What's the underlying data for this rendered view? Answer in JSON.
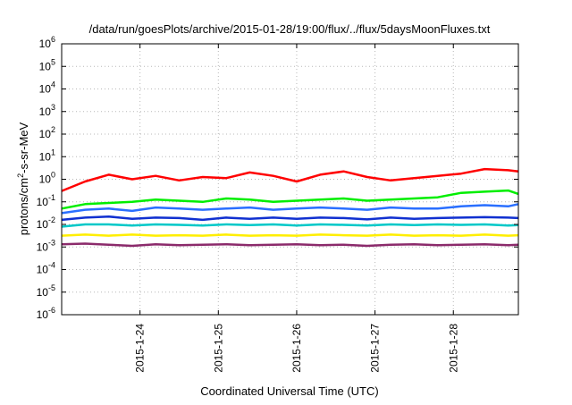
{
  "chart_data": {
    "type": "line",
    "title": "/data/run/goesPlots/archive/2015-01-28/19:00/flux/../flux/5daysMoonFluxes.txt",
    "xlabel": "Coordinated Universal Time (UTC)",
    "ylabel": {
      "base": "protons/cm",
      "sup": "2",
      "rest": "-s-sr-MeV"
    },
    "x_range_days": [
      0,
      5.83
    ],
    "y_scale": "log",
    "ylim": [
      1e-06,
      1000000.0
    ],
    "grid": true,
    "x_ticks": [
      {
        "label": "2015-1-24",
        "day": 1
      },
      {
        "label": "2015-1-25",
        "day": 2
      },
      {
        "label": "2015-1-26",
        "day": 3
      },
      {
        "label": "2015-1-27",
        "day": 4
      },
      {
        "label": "2015-1-28",
        "day": 5
      }
    ],
    "y_ticks": [
      {
        "base": "10",
        "exp": "-6",
        "value": -6
      },
      {
        "base": "10",
        "exp": "-5",
        "value": -5
      },
      {
        "base": "10",
        "exp": "-4",
        "value": -4
      },
      {
        "base": "10",
        "exp": "-3",
        "value": -3
      },
      {
        "base": "10",
        "exp": "-2",
        "value": -2
      },
      {
        "base": "10",
        "exp": "-1",
        "value": -1
      },
      {
        "base": "10",
        "exp": "0",
        "value": 0
      },
      {
        "base": "10",
        "exp": "1",
        "value": 1
      },
      {
        "base": "10",
        "exp": "2",
        "value": 2
      },
      {
        "base": "10",
        "exp": "3",
        "value": 3
      },
      {
        "base": "10",
        "exp": "4",
        "value": 4
      },
      {
        "base": "10",
        "exp": "5",
        "value": 5
      },
      {
        "base": "10",
        "exp": "6",
        "value": 6
      }
    ],
    "series": [
      {
        "color": "#ff0000",
        "x": [
          0,
          0.3,
          0.6,
          0.9,
          1.2,
          1.5,
          1.8,
          2.1,
          2.4,
          2.7,
          3.0,
          3.3,
          3.6,
          3.9,
          4.2,
          4.5,
          4.8,
          5.1,
          5.4,
          5.7,
          5.83
        ],
        "log10_y": [
          -0.52,
          -0.1,
          0.2,
          0.0,
          0.15,
          -0.05,
          0.1,
          0.05,
          0.3,
          0.15,
          -0.1,
          0.2,
          0.35,
          0.1,
          -0.05,
          0.05,
          0.15,
          0.25,
          0.45,
          0.4,
          0.35
        ]
      },
      {
        "color": "#00ee00",
        "x": [
          0,
          0.3,
          0.6,
          0.9,
          1.2,
          1.5,
          1.8,
          2.1,
          2.4,
          2.7,
          3.0,
          3.3,
          3.6,
          3.9,
          4.2,
          4.5,
          4.8,
          5.1,
          5.4,
          5.7,
          5.83
        ],
        "log10_y": [
          -1.3,
          -1.1,
          -1.05,
          -1.0,
          -0.9,
          -0.95,
          -1.0,
          -0.85,
          -0.9,
          -1.0,
          -0.95,
          -0.9,
          -0.85,
          -0.95,
          -0.9,
          -0.85,
          -0.8,
          -0.6,
          -0.55,
          -0.5,
          -0.65
        ]
      },
      {
        "color": "#2a6fff",
        "x": [
          0,
          0.3,
          0.6,
          0.9,
          1.2,
          1.5,
          1.8,
          2.1,
          2.4,
          2.7,
          3.0,
          3.3,
          3.6,
          3.9,
          4.2,
          4.5,
          4.8,
          5.1,
          5.4,
          5.7,
          5.83
        ],
        "log10_y": [
          -1.5,
          -1.35,
          -1.3,
          -1.4,
          -1.25,
          -1.3,
          -1.35,
          -1.3,
          -1.25,
          -1.35,
          -1.3,
          -1.25,
          -1.3,
          -1.35,
          -1.25,
          -1.3,
          -1.3,
          -1.2,
          -1.15,
          -1.2,
          -1.1
        ]
      },
      {
        "color": "#1030d0",
        "x": [
          0,
          0.3,
          0.6,
          0.9,
          1.2,
          1.5,
          1.8,
          2.1,
          2.4,
          2.7,
          3.0,
          3.3,
          3.6,
          3.9,
          4.2,
          4.5,
          4.8,
          5.1,
          5.4,
          5.7,
          5.83
        ],
        "log10_y": [
          -1.8,
          -1.7,
          -1.65,
          -1.75,
          -1.7,
          -1.72,
          -1.8,
          -1.7,
          -1.75,
          -1.7,
          -1.75,
          -1.7,
          -1.72,
          -1.78,
          -1.7,
          -1.75,
          -1.72,
          -1.7,
          -1.68,
          -1.7,
          -1.72
        ]
      },
      {
        "color": "#00c8c8",
        "x": [
          0,
          0.3,
          0.6,
          0.9,
          1.2,
          1.5,
          1.8,
          2.1,
          2.4,
          2.7,
          3.0,
          3.3,
          3.6,
          3.9,
          4.2,
          4.5,
          4.8,
          5.1,
          5.4,
          5.7,
          5.83
        ],
        "log10_y": [
          -2.1,
          -2.0,
          -2.0,
          -2.05,
          -2.0,
          -2.02,
          -2.05,
          -2.0,
          -2.03,
          -2.0,
          -2.05,
          -2.0,
          -2.02,
          -2.05,
          -2.0,
          -2.03,
          -2.0,
          -2.02,
          -2.0,
          -2.05,
          -2.03
        ]
      },
      {
        "color": "#ffee00",
        "x": [
          0,
          0.3,
          0.6,
          0.9,
          1.2,
          1.5,
          1.8,
          2.1,
          2.4,
          2.7,
          3.0,
          3.3,
          3.6,
          3.9,
          4.2,
          4.5,
          4.8,
          5.1,
          5.4,
          5.7,
          5.83
        ],
        "log10_y": [
          -2.5,
          -2.45,
          -2.5,
          -2.45,
          -2.5,
          -2.48,
          -2.5,
          -2.45,
          -2.5,
          -2.48,
          -2.5,
          -2.45,
          -2.48,
          -2.5,
          -2.45,
          -2.5,
          -2.48,
          -2.5,
          -2.45,
          -2.5,
          -2.48
        ]
      },
      {
        "color": "#8b2a6b",
        "x": [
          0,
          0.3,
          0.6,
          0.9,
          1.2,
          1.5,
          1.8,
          2.1,
          2.4,
          2.7,
          3.0,
          3.3,
          3.6,
          3.9,
          4.2,
          4.5,
          4.8,
          5.1,
          5.4,
          5.7,
          5.83
        ],
        "log10_y": [
          -2.88,
          -2.85,
          -2.9,
          -2.95,
          -2.88,
          -2.92,
          -2.9,
          -2.88,
          -2.92,
          -2.9,
          -2.88,
          -2.92,
          -2.9,
          -2.95,
          -2.9,
          -2.88,
          -2.92,
          -2.9,
          -2.88,
          -2.92,
          -2.9
        ]
      }
    ]
  }
}
